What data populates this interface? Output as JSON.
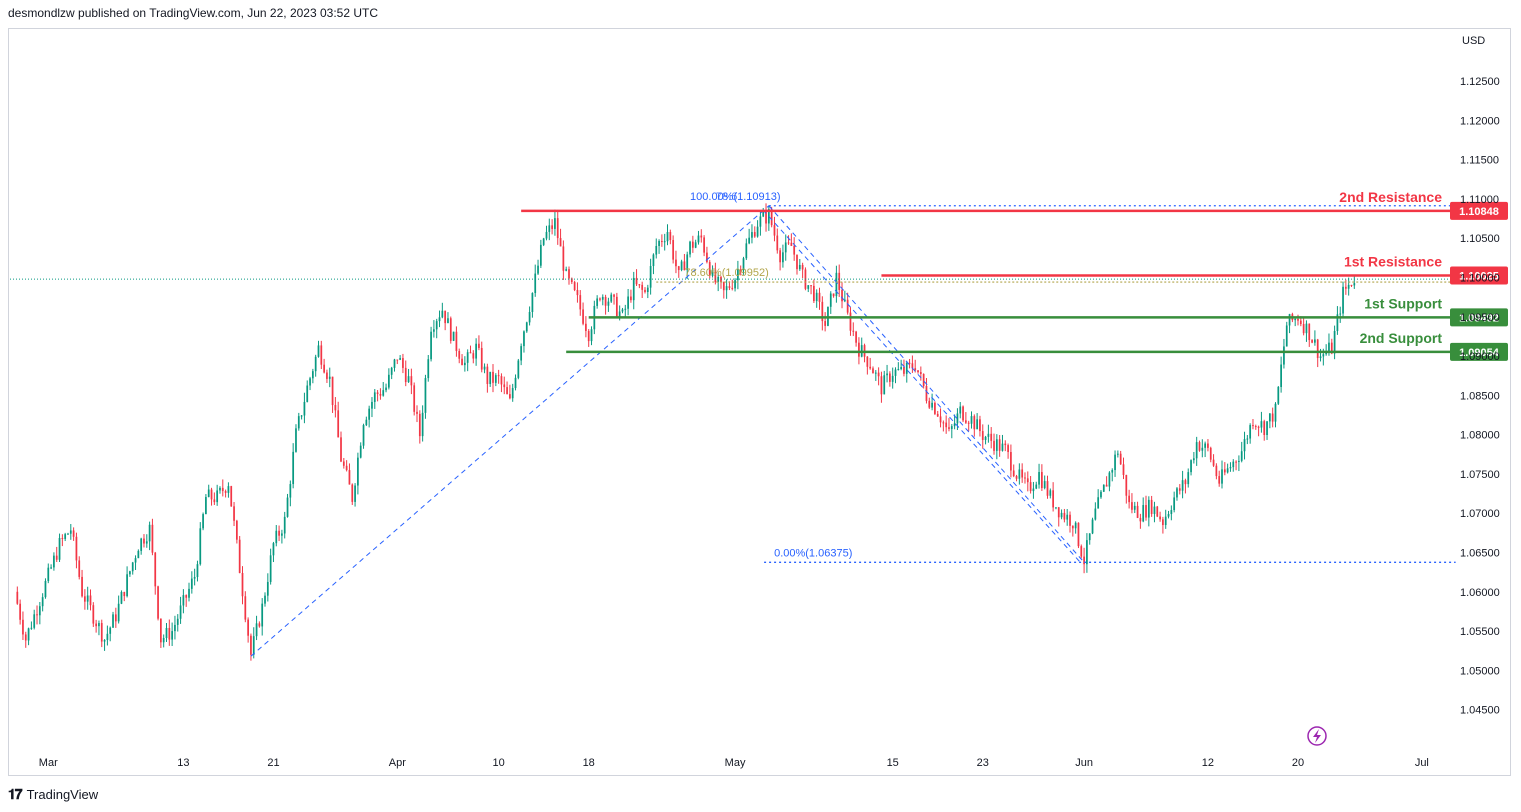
{
  "header": {
    "publisher_text": "desmondlzw published on TradingView.com, Jun 22, 2023 03:52 UTC"
  },
  "footer": {
    "brand_label": "TradingView",
    "logo_icon": "tradingview-logo-icon"
  },
  "colors": {
    "up": "#089981",
    "down": "#f23645",
    "resistance": "#f23645",
    "support": "#388e3c",
    "fib": "#2962ff",
    "fib_mid": "#b2a54b",
    "axis_text": "#131722",
    "replay_icon": "#9c27b0"
  },
  "chart_data": {
    "type": "candlestick",
    "symbol_currency": "USD",
    "ylim": [
      1.0405,
      1.1315
    ],
    "y_ticks": [
      "1.12500",
      "1.12000",
      "1.11500",
      "1.11000",
      "1.10500",
      "1.10000",
      "1.09500",
      "1.09000",
      "1.08500",
      "1.08000",
      "1.07500",
      "1.07000",
      "1.06500",
      "1.06000",
      "1.05500",
      "1.05000",
      "1.04500"
    ],
    "x_ticks": [
      {
        "label": "Mar",
        "day": 0
      },
      {
        "label": "13",
        "day": 12
      },
      {
        "label": "21",
        "day": 20
      },
      {
        "label": "Apr",
        "day": 31
      },
      {
        "label": "10",
        "day": 40
      },
      {
        "label": "18",
        "day": 48
      },
      {
        "label": "May",
        "day": 61
      },
      {
        "label": "15",
        "day": 75
      },
      {
        "label": "23",
        "day": 83
      },
      {
        "label": "Jun",
        "day": 92
      },
      {
        "label": "12",
        "day": 103
      },
      {
        "label": "20",
        "day": 111
      },
      {
        "label": "Jul",
        "day": 122
      }
    ],
    "x_range_days": [
      -3.4,
      124.5
    ],
    "price_path": [
      [
        -3,
        1.06
      ],
      [
        -2,
        1.054
      ],
      [
        -1,
        1.058
      ],
      [
        1,
        1.066
      ],
      [
        2,
        1.068
      ],
      [
        3,
        1.06
      ],
      [
        5,
        1.054
      ],
      [
        6,
        1.057
      ],
      [
        8,
        1.066
      ],
      [
        9,
        1.068
      ],
      [
        10,
        1.054
      ],
      [
        11,
        1.055
      ],
      [
        13,
        1.062
      ],
      [
        14,
        1.072
      ],
      [
        15,
        1.072
      ],
      [
        16,
        1.074
      ],
      [
        17,
        1.063
      ],
      [
        18,
        1.052
      ],
      [
        19,
        1.058
      ],
      [
        20,
        1.066
      ],
      [
        21,
        1.069
      ],
      [
        22,
        1.08
      ],
      [
        23,
        1.086
      ],
      [
        24,
        1.091
      ],
      [
        25,
        1.087
      ],
      [
        26,
        1.077
      ],
      [
        27,
        1.072
      ],
      [
        28,
        1.082
      ],
      [
        29,
        1.085
      ],
      [
        30,
        1.086
      ],
      [
        31,
        1.09
      ],
      [
        32,
        1.087
      ],
      [
        33,
        1.08
      ],
      [
        34,
        1.094
      ],
      [
        35,
        1.096
      ],
      [
        36,
        1.092
      ],
      [
        37,
        1.089
      ],
      [
        38,
        1.091
      ],
      [
        39,
        1.087
      ],
      [
        40,
        1.087
      ],
      [
        41,
        1.084
      ],
      [
        42,
        1.092
      ],
      [
        43,
        1.098
      ],
      [
        44,
        1.105
      ],
      [
        45,
        1.107
      ],
      [
        46,
        1.1
      ],
      [
        47,
        1.097
      ],
      [
        48,
        1.093
      ],
      [
        49,
        1.098
      ],
      [
        50,
        1.097
      ],
      [
        51,
        1.095
      ],
      [
        52,
        1.099
      ],
      [
        53,
        1.098
      ],
      [
        54,
        1.104
      ],
      [
        55,
        1.106
      ],
      [
        56,
        1.1
      ],
      [
        57,
        1.104
      ],
      [
        58,
        1.105
      ],
      [
        59,
        1.1
      ],
      [
        60,
        1.098
      ],
      [
        61,
        1.1
      ],
      [
        62,
        1.104
      ],
      [
        63,
        1.107
      ],
      [
        64,
        1.108
      ],
      [
        65,
        1.103
      ],
      [
        66,
        1.104
      ],
      [
        67,
        1.1
      ],
      [
        68,
        1.098
      ],
      [
        69,
        1.094
      ],
      [
        70,
        1.1
      ],
      [
        71,
        1.095
      ],
      [
        72,
        1.091
      ],
      [
        73,
        1.089
      ],
      [
        74,
        1.086
      ],
      [
        75,
        1.088
      ],
      [
        76,
        1.088
      ],
      [
        77,
        1.089
      ],
      [
        78,
        1.085
      ],
      [
        79,
        1.083
      ],
      [
        80,
        1.08
      ],
      [
        81,
        1.083
      ],
      [
        82,
        1.082
      ],
      [
        83,
        1.08
      ],
      [
        84,
        1.079
      ],
      [
        85,
        1.078
      ],
      [
        86,
        1.075
      ],
      [
        87,
        1.073
      ],
      [
        88,
        1.075
      ],
      [
        89,
        1.072
      ],
      [
        90,
        1.07
      ],
      [
        91,
        1.069
      ],
      [
        92,
        1.064
      ],
      [
        93,
        1.07
      ],
      [
        94,
        1.074
      ],
      [
        95,
        1.078
      ],
      [
        96,
        1.071
      ],
      [
        97,
        1.07
      ],
      [
        98,
        1.071
      ],
      [
        99,
        1.069
      ],
      [
        100,
        1.072
      ],
      [
        101,
        1.074
      ],
      [
        102,
        1.079
      ],
      [
        103,
        1.078
      ],
      [
        104,
        1.074
      ],
      [
        105,
        1.076
      ],
      [
        106,
        1.078
      ],
      [
        107,
        1.082
      ],
      [
        108,
        1.081
      ],
      [
        109,
        1.083
      ],
      [
        110,
        1.094
      ],
      [
        111,
        1.095
      ],
      [
        112,
        1.093
      ],
      [
        113,
        1.09
      ],
      [
        114,
        1.091
      ],
      [
        115,
        1.098
      ],
      [
        116,
        1.1
      ]
    ],
    "current_price": 1.0998,
    "levels": [
      {
        "name": "2nd Resistance",
        "price": 1.10848,
        "price_label": "1.10848",
        "kind": "resistance",
        "start_day": 42
      },
      {
        "name": "1st Resistance",
        "price": 1.10025,
        "price_label": "1.10025",
        "kind": "resistance",
        "start_day": 74
      },
      {
        "name": "1st Support",
        "price": 1.09492,
        "price_label": "1.09492",
        "kind": "support",
        "start_day": 48
      },
      {
        "name": "2nd Support",
        "price": 1.09054,
        "price_label": "1.09054",
        "kind": "support",
        "start_day": 46
      }
    ],
    "fib": {
      "high_price": 1.10913,
      "low_price": 1.06375,
      "high_day": 64,
      "low_day": 92,
      "start_day": 64,
      "end_day": 125,
      "label_0": "0.00%(1.06375)",
      "label_100": "100.00%(1.10913)",
      "label_786": "78.60%(1.09952)",
      "label_786_overlap": "78.6"
    },
    "trendline_start": [
      18,
      1.0518
    ],
    "trendline_end": [
      64,
      1.10913
    ],
    "channel_start": [
      64,
      1.10913
    ],
    "channel_end": [
      92,
      1.06375
    ]
  }
}
